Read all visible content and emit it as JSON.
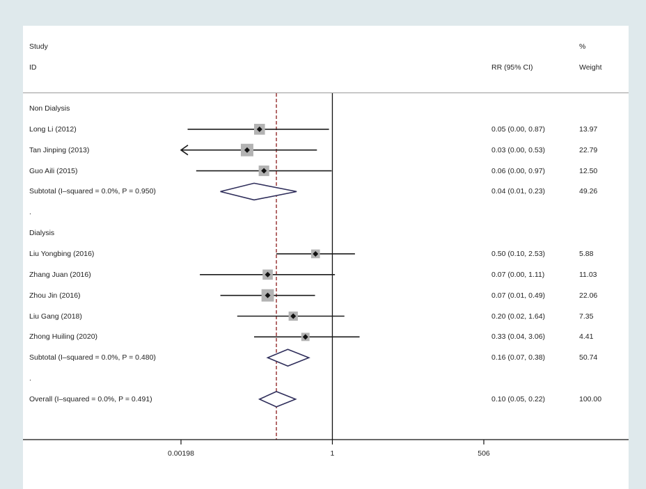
{
  "header": {
    "study_label": "Study",
    "id_label": "ID",
    "rr_label": "RR (95% CI)",
    "pct_label": "%",
    "weight_label": "Weight"
  },
  "colors": {
    "background": "#dfe9ec",
    "plot_background": "#ffffff",
    "ci_line": "#1a1a1a",
    "weight_box": "#b3b3b3",
    "diamond": "#2e2d5a",
    "overall_line": "#8b1a1a"
  },
  "chart_data": {
    "type": "forest",
    "x_scale": "log",
    "x_ticks": [
      {
        "value": 0.00198,
        "label": "0.00198"
      },
      {
        "value": 1,
        "label": "1"
      },
      {
        "value": 506,
        "label": "506"
      }
    ],
    "null_line": 1,
    "overall_estimate": 0.1,
    "rows": [
      {
        "kind": "group",
        "label": "Non Dialysis"
      },
      {
        "kind": "study",
        "label": "Long Li (2012)",
        "rr": 0.05,
        "lo": 0.0,
        "hi": 0.87,
        "rr_text": "0.05 (0.00, 0.87)",
        "weight": "13.97",
        "lo_plot": 0.0026
      },
      {
        "kind": "study",
        "label": "Tan Jinping (2013)",
        "rr": 0.03,
        "lo": 0.0,
        "hi": 0.53,
        "rr_text": "0.03 (0.00, 0.53)",
        "weight": "22.79",
        "lo_plot": 0.00198,
        "lo_arrow": true
      },
      {
        "kind": "study",
        "label": "Guo Aili (2015)",
        "rr": 0.06,
        "lo": 0.0,
        "hi": 0.97,
        "rr_text": "0.06 (0.00, 0.97)",
        "weight": "12.50",
        "lo_plot": 0.0037
      },
      {
        "kind": "subtotal",
        "label": "Subtotal  (I–squared = 0.0%, P = 0.950)",
        "rr": 0.04,
        "lo": 0.01,
        "hi": 0.23,
        "rr_text": "0.04 (0.01, 0.23)",
        "weight": "49.26"
      },
      {
        "kind": "spacer",
        "label": "."
      },
      {
        "kind": "group",
        "label": "Dialysis"
      },
      {
        "kind": "study",
        "label": "Liu Yongbing (2016)",
        "rr": 0.5,
        "lo": 0.1,
        "hi": 2.53,
        "rr_text": "0.50 (0.10, 2.53)",
        "weight": "5.88"
      },
      {
        "kind": "study",
        "label": "Zhang Juan (2016)",
        "rr": 0.07,
        "lo": 0.0,
        "hi": 1.11,
        "rr_text": "0.07 (0.00, 1.11)",
        "weight": "11.03",
        "lo_plot": 0.0043
      },
      {
        "kind": "study",
        "label": "Zhou Jin (2016)",
        "rr": 0.07,
        "lo": 0.01,
        "hi": 0.49,
        "rr_text": "0.07 (0.01, 0.49)",
        "weight": "22.06"
      },
      {
        "kind": "study",
        "label": "Liu Gang (2018)",
        "rr": 0.2,
        "lo": 0.02,
        "hi": 1.64,
        "rr_text": "0.20 (0.02, 1.64)",
        "weight": "7.35"
      },
      {
        "kind": "study",
        "label": "Zhong Huiling (2020)",
        "rr": 0.33,
        "lo": 0.04,
        "hi": 3.06,
        "rr_text": "0.33 (0.04, 3.06)",
        "weight": "4.41"
      },
      {
        "kind": "subtotal",
        "label": "Subtotal  (I–squared = 0.0%, P = 0.480)",
        "rr": 0.16,
        "lo": 0.07,
        "hi": 0.38,
        "rr_text": "0.16 (0.07, 0.38)",
        "weight": "50.74"
      },
      {
        "kind": "spacer",
        "label": "."
      },
      {
        "kind": "overall",
        "label": "Overall  (I–squared = 0.0%, P = 0.491)",
        "rr": 0.1,
        "lo": 0.05,
        "hi": 0.22,
        "rr_text": "0.10 (0.05, 0.22)",
        "weight": "100.00"
      }
    ]
  }
}
